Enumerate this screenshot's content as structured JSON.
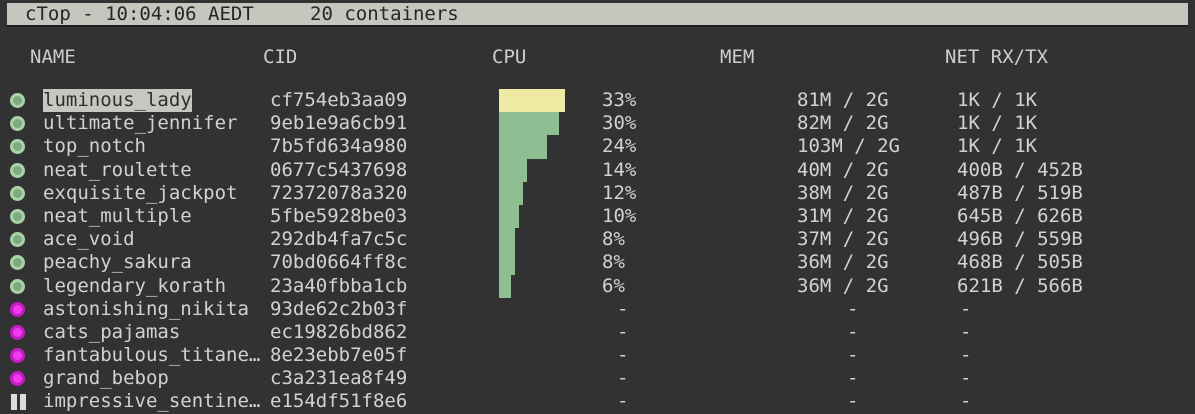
{
  "titlebar": {
    "app": "cTop - 10:04:06 AEDT",
    "containers": "20 containers"
  },
  "header": {
    "name": "NAME",
    "cid": "CID",
    "cpu": "CPU",
    "mem": "MEM",
    "net": "NET RX/TX"
  },
  "colors": {
    "titlebar_bg": "#c5c7bf",
    "selected_bg": "#c6c8c0",
    "bar_green": "#8fbe92",
    "bar_yellow": "#eeeaa3",
    "status_running": "#a8d3a8",
    "status_running_core": "#7fa982",
    "status_stopped": "#c21ec6",
    "status_stopped_core": "#ee3cee",
    "status_paused": "#dcdcdc"
  },
  "rows": [
    {
      "status": "running",
      "selected": true,
      "name": "luminous_lady",
      "cid": "cf754eb3aa09",
      "cpu_pct": 33,
      "cpu": "33%",
      "mem": "81M / 2G",
      "net": "1K / 1K"
    },
    {
      "status": "running",
      "selected": false,
      "name": "ultimate_jennifer",
      "cid": "9eb1e9a6cb91",
      "cpu_pct": 30,
      "cpu": "30%",
      "mem": "82M / 2G",
      "net": "1K / 1K"
    },
    {
      "status": "running",
      "selected": false,
      "name": "top_notch",
      "cid": "7b5fd634a980",
      "cpu_pct": 24,
      "cpu": "24%",
      "mem": "103M / 2G",
      "net": "1K / 1K"
    },
    {
      "status": "running",
      "selected": false,
      "name": "neat_roulette",
      "cid": "0677c5437698",
      "cpu_pct": 14,
      "cpu": "14%",
      "mem": "40M / 2G",
      "net": "400B / 452B"
    },
    {
      "status": "running",
      "selected": false,
      "name": "exquisite_jackpot",
      "cid": "72372078a320",
      "cpu_pct": 12,
      "cpu": "12%",
      "mem": "38M / 2G",
      "net": "487B / 519B"
    },
    {
      "status": "running",
      "selected": false,
      "name": "neat_multiple",
      "cid": "5fbe5928be03",
      "cpu_pct": 10,
      "cpu": "10%",
      "mem": "31M / 2G",
      "net": "645B / 626B"
    },
    {
      "status": "running",
      "selected": false,
      "name": "ace_void",
      "cid": "292db4fa7c5c",
      "cpu_pct": 8,
      "cpu": "8%",
      "mem": "37M / 2G",
      "net": "496B / 559B"
    },
    {
      "status": "running",
      "selected": false,
      "name": "peachy_sakura",
      "cid": "70bd0664ff8c",
      "cpu_pct": 8,
      "cpu": "8%",
      "mem": "36M / 2G",
      "net": "468B / 505B"
    },
    {
      "status": "running",
      "selected": false,
      "name": "legendary_korath",
      "cid": "23a40fbba1cb",
      "cpu_pct": 6,
      "cpu": "6%",
      "mem": "36M / 2G",
      "net": "621B / 566B"
    },
    {
      "status": "stopped",
      "selected": false,
      "name": "astonishing_nikita",
      "cid": "93de62c2b03f",
      "cpu_pct": null,
      "cpu": "-",
      "mem": "-",
      "net": "-"
    },
    {
      "status": "stopped",
      "selected": false,
      "name": "cats_pajamas",
      "cid": "ec19826bd862",
      "cpu_pct": null,
      "cpu": "-",
      "mem": "-",
      "net": "-"
    },
    {
      "status": "stopped",
      "selected": false,
      "name": "fantabulous_titane…",
      "cid": "8e23ebb7e05f",
      "cpu_pct": null,
      "cpu": "-",
      "mem": "-",
      "net": "-"
    },
    {
      "status": "stopped",
      "selected": false,
      "name": "grand_bebop",
      "cid": "c3a231ea8f49",
      "cpu_pct": null,
      "cpu": "-",
      "mem": "-",
      "net": "-"
    },
    {
      "status": "paused",
      "selected": false,
      "name": "impressive_sentine…",
      "cid": "e154df51f8e6",
      "cpu_pct": null,
      "cpu": "-",
      "mem": "-",
      "net": "-"
    }
  ]
}
